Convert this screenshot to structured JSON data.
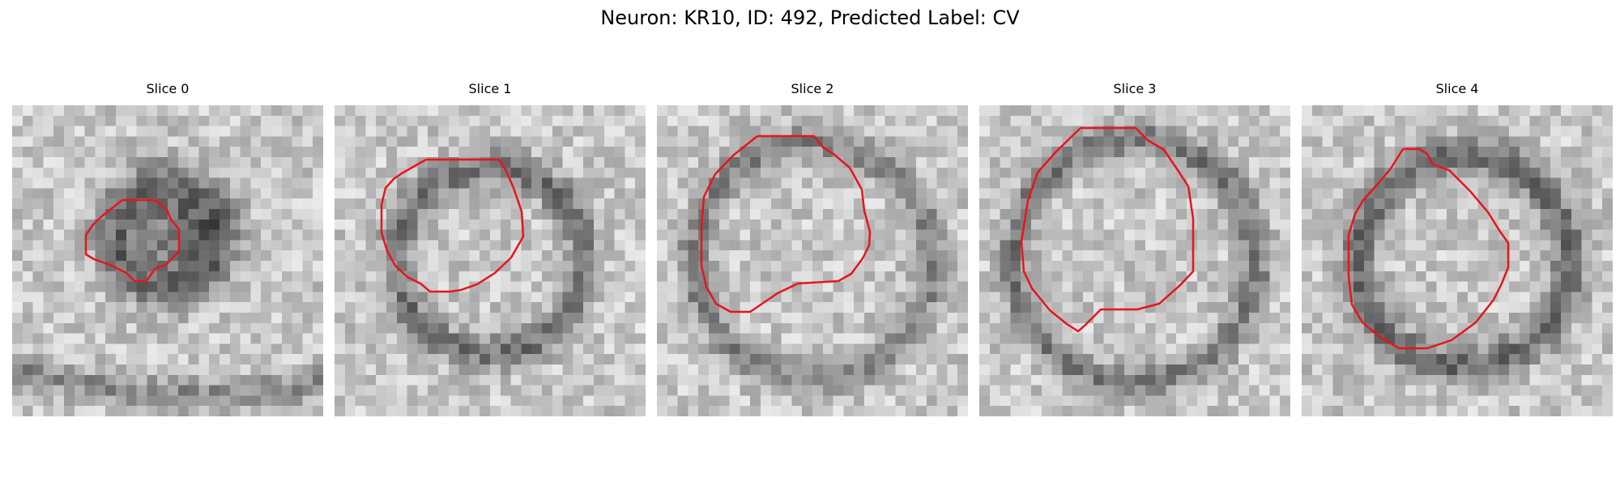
{
  "figure": {
    "title": "Neuron: KR10, ID: 492, Predicted Label: CV"
  },
  "colors": {
    "contour": "#e8141b",
    "background": "#ffffff"
  },
  "panels": [
    {
      "title": "Slice 0"
    },
    {
      "title": "Slice 1"
    },
    {
      "title": "Slice 2"
    },
    {
      "title": "Slice 3"
    },
    {
      "title": "Slice 4"
    }
  ]
}
